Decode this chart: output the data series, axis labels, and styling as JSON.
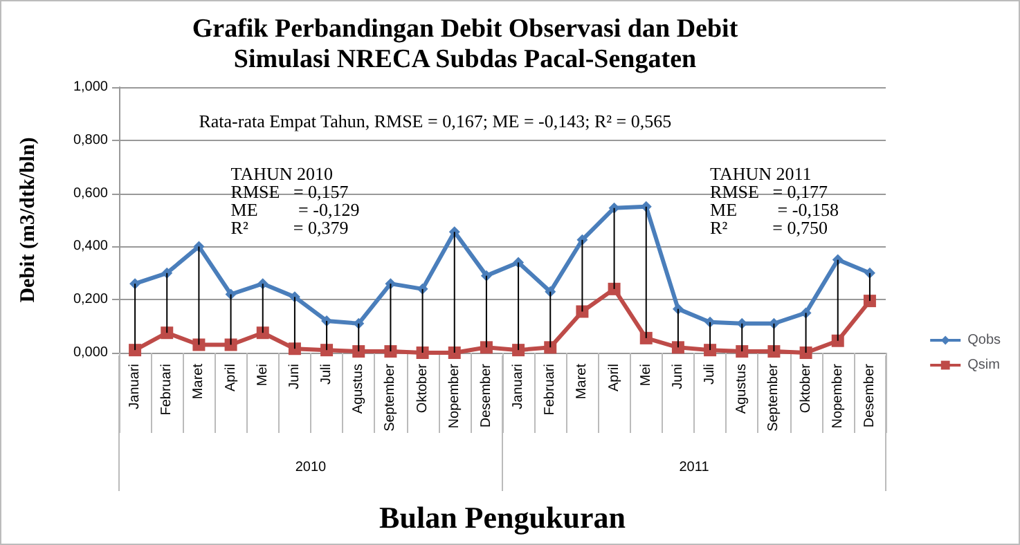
{
  "chart_data": {
    "type": "line",
    "title": "Grafik Perbandingan Debit Observasi dan Debit\nSimulasi NRECA Subdas Pacal-Sengaten",
    "xlabel": "Bulan Pengukuran",
    "ylabel": "Debit (m3/dtk/bln)",
    "categories": [
      "Januari",
      "Februari",
      "Maret",
      "April",
      "Mei",
      "Juni",
      "Juli",
      "Agustus",
      "September",
      "Oktober",
      "Nopember",
      "Desember",
      "Januari",
      "Februari",
      "Maret",
      "April",
      "Mei",
      "Juni",
      "Juli",
      "Agustus",
      "September",
      "Oktober",
      "Nopember",
      "Desember"
    ],
    "series": [
      {
        "name": "Qobs",
        "color": "#4a7ebb",
        "marker": "diamond",
        "values": [
          0.26,
          0.3,
          0.4,
          0.22,
          0.26,
          0.21,
          0.12,
          0.11,
          0.26,
          0.24,
          0.455,
          0.29,
          0.34,
          0.23,
          0.425,
          0.545,
          0.55,
          0.165,
          0.115,
          0.11,
          0.11,
          0.15,
          0.35,
          0.3
        ]
      },
      {
        "name": "Qsim",
        "color": "#be4b48",
        "marker": "square",
        "values": [
          0.01,
          0.075,
          0.03,
          0.03,
          0.075,
          0.015,
          0.01,
          0.005,
          0.005,
          0.0,
          0.0,
          0.02,
          0.01,
          0.02,
          0.155,
          0.24,
          0.055,
          0.02,
          0.01,
          0.005,
          0.005,
          0.0,
          0.045,
          0.195
        ],
        "errors": [
          [
            0.01,
            0.26
          ],
          [
            0.075,
            0.3
          ],
          [
            0.03,
            0.4
          ],
          [
            0.03,
            0.22
          ],
          [
            0.075,
            0.26
          ],
          [
            0.015,
            0.21
          ],
          [
            0.01,
            0.12
          ],
          [
            0.005,
            0.11
          ],
          [
            0.005,
            0.26
          ],
          [
            0.0,
            0.24
          ],
          [
            0.0,
            0.455
          ],
          [
            0.02,
            0.29
          ],
          [
            0.01,
            0.34
          ],
          [
            0.02,
            0.23
          ],
          [
            0.155,
            0.425
          ],
          [
            0.24,
            0.545
          ],
          [
            0.055,
            0.55
          ],
          [
            0.02,
            0.165
          ],
          [
            0.01,
            0.115
          ],
          [
            0.005,
            0.11
          ],
          [
            0.005,
            0.11
          ],
          [
            0.0,
            0.15
          ],
          [
            0.045,
            0.35
          ],
          [
            0.195,
            0.3
          ]
        ]
      }
    ],
    "ylim": [
      0,
      1
    ],
    "yticks": [
      {
        "value": 0,
        "label": "0,000"
      },
      {
        "value": 0.2,
        "label": "0,200"
      },
      {
        "value": 0.4,
        "label": "0,400"
      },
      {
        "value": 0.6,
        "label": "0,600"
      },
      {
        "value": 0.8,
        "label": "0,800"
      },
      {
        "value": 1,
        "label": "1,000"
      }
    ],
    "grid": "y",
    "legend": "right",
    "annotations": [
      "Rata-rata Empat Tahun, RMSE = 0,167; ME = -0,143; R² = 0,565",
      "TAHUN 2010\nRMSE   = 0,157\nME         = -0,129\nR²          = 0,379",
      "TAHUN 2011\nRMSE   = 0,177\nME         = -0,158\nR²          = 0,750",
      "2010",
      "2011"
    ]
  }
}
